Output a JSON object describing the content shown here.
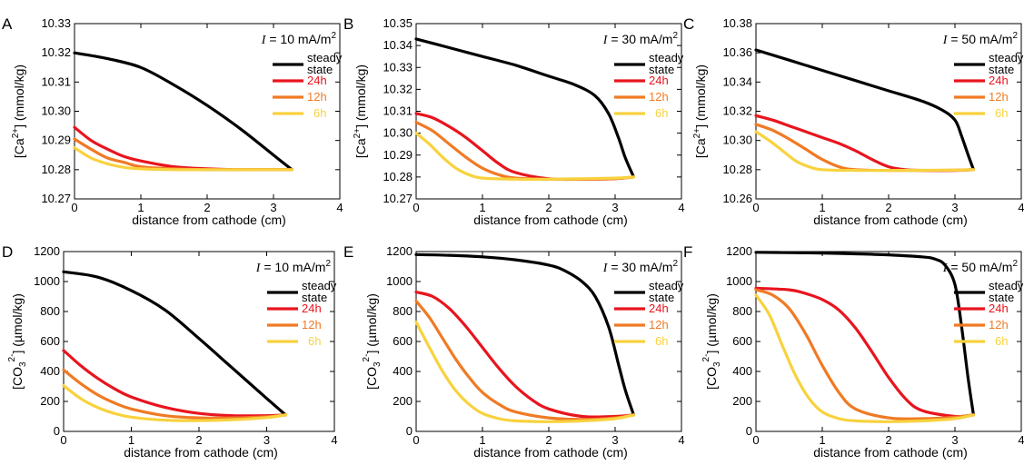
{
  "chart_data": [
    {
      "type": "line",
      "panel_label": "A",
      "current": {
        "symbol": "I",
        "text": " = 10 mA/m",
        "sup": "2"
      },
      "xlabel": "distance from cathode (cm)",
      "ylabel": {
        "pre": "[Ca",
        "sup": "2+",
        "post": "] (mmol/kg)"
      },
      "xlim": [
        0,
        4
      ],
      "ylim": [
        10.27,
        10.33
      ],
      "xticks": [
        0,
        1,
        2,
        3,
        4
      ],
      "yticks": [
        10.27,
        10.28,
        10.29,
        10.3,
        10.31,
        10.32,
        10.33
      ],
      "ytick_labels": [
        "10.27",
        "10.28",
        "10.29",
        "10.30",
        "10.31",
        "10.32",
        "10.33"
      ],
      "legend_position": "top-right",
      "series": [
        {
          "name": "steady state",
          "color": "#000000",
          "x": [
            0,
            0.5,
            1,
            1.5,
            2,
            2.5,
            3,
            3.28
          ],
          "y": [
            10.32,
            10.318,
            10.315,
            10.309,
            10.302,
            10.294,
            10.285,
            10.28
          ]
        },
        {
          "name": "24h",
          "color": "#e8141e",
          "x": [
            0,
            0.25,
            0.5,
            0.75,
            1,
            1.5,
            2,
            2.5,
            3,
            3.28
          ],
          "y": [
            10.2945,
            10.29,
            10.287,
            10.2845,
            10.283,
            10.281,
            10.2803,
            10.28,
            10.28,
            10.28
          ]
        },
        {
          "name": "12h",
          "color": "#f07a24",
          "x": [
            0,
            0.25,
            0.5,
            0.75,
            1,
            1.5,
            2,
            3,
            3.28
          ],
          "y": [
            10.2905,
            10.287,
            10.284,
            10.2825,
            10.281,
            10.2803,
            10.28,
            10.28,
            10.28
          ]
        },
        {
          "name": "6h",
          "color": "#f8d23e",
          "x": [
            0,
            0.25,
            0.5,
            0.75,
            1,
            1.5,
            2,
            3,
            3.28
          ],
          "y": [
            10.2875,
            10.284,
            10.282,
            10.2808,
            10.2803,
            10.28,
            10.28,
            10.28,
            10.28
          ]
        }
      ]
    },
    {
      "type": "line",
      "panel_label": "B",
      "current": {
        "symbol": "I",
        "text": " = 30 mA/m",
        "sup": "2"
      },
      "xlabel": "distance from cathode (cm)",
      "ylabel": {
        "pre": "[Ca",
        "sup": "2+",
        "post": "] (mmol/kg)"
      },
      "xlim": [
        0,
        4
      ],
      "ylim": [
        10.27,
        10.35
      ],
      "xticks": [
        0,
        1,
        2,
        3,
        4
      ],
      "yticks": [
        10.27,
        10.28,
        10.29,
        10.3,
        10.31,
        10.32,
        10.33,
        10.34,
        10.35
      ],
      "ytick_labels": [
        "10.27",
        "10.28",
        "10.29",
        "10.30",
        "10.31",
        "10.32",
        "10.33",
        "10.34",
        "10.35"
      ],
      "legend_position": "top-right",
      "series": [
        {
          "name": "steady state",
          "color": "#000000",
          "x": [
            0,
            0.5,
            1,
            1.5,
            2,
            2.4,
            2.7,
            2.9,
            3.05,
            3.15,
            3.28
          ],
          "y": [
            10.343,
            10.339,
            10.335,
            10.331,
            10.326,
            10.322,
            10.317,
            10.309,
            10.298,
            10.289,
            10.28
          ]
        },
        {
          "name": "24h",
          "color": "#e8141e",
          "x": [
            0,
            0.25,
            0.5,
            0.75,
            1,
            1.25,
            1.5,
            2,
            2.5,
            3,
            3.28
          ],
          "y": [
            10.309,
            10.307,
            10.303,
            10.298,
            10.292,
            10.286,
            10.282,
            10.2792,
            10.279,
            10.2792,
            10.28
          ]
        },
        {
          "name": "12h",
          "color": "#f07a24",
          "x": [
            0,
            0.25,
            0.5,
            0.75,
            1,
            1.25,
            1.5,
            2,
            2.5,
            3,
            3.28
          ],
          "y": [
            10.305,
            10.301,
            10.295,
            10.289,
            10.284,
            10.281,
            10.2795,
            10.279,
            10.279,
            10.2793,
            10.28
          ]
        },
        {
          "name": "6h",
          "color": "#f8d23e",
          "x": [
            0,
            0.2,
            0.4,
            0.6,
            0.8,
            1,
            1.5,
            2,
            3,
            3.28
          ],
          "y": [
            10.3,
            10.295,
            10.289,
            10.284,
            10.281,
            10.2795,
            10.279,
            10.279,
            10.2795,
            10.28
          ]
        }
      ]
    },
    {
      "type": "line",
      "panel_label": "C",
      "current": {
        "symbol": "I",
        "text": " = 50 mA/m",
        "sup": "2"
      },
      "xlabel": "distance from cathode (cm)",
      "ylabel": {
        "pre": "[Ca",
        "sup": "2+",
        "post": "] (mmol/kg)"
      },
      "xlim": [
        0,
        4
      ],
      "ylim": [
        10.26,
        10.38
      ],
      "xticks": [
        0,
        1,
        2,
        3,
        4
      ],
      "yticks": [
        10.26,
        10.28,
        10.3,
        10.32,
        10.34,
        10.36,
        10.38
      ],
      "ytick_labels": [
        "10.26",
        "10.28",
        "10.30",
        "10.32",
        "10.34",
        "10.36",
        "10.38"
      ],
      "legend_position": "top-right",
      "series": [
        {
          "name": "steady state",
          "color": "#000000",
          "x": [
            0,
            0.5,
            1,
            1.5,
            2,
            2.5,
            2.8,
            3.0,
            3.1,
            3.2,
            3.28
          ],
          "y": [
            10.362,
            10.355,
            10.348,
            10.341,
            10.334,
            10.327,
            10.321,
            10.314,
            10.303,
            10.29,
            10.28
          ]
        },
        {
          "name": "24h",
          "color": "#e8141e",
          "x": [
            0,
            0.25,
            0.5,
            0.75,
            1,
            1.25,
            1.5,
            1.75,
            2,
            2.25,
            2.5,
            3,
            3.28
          ],
          "y": [
            10.317,
            10.314,
            10.31,
            10.306,
            10.302,
            10.298,
            10.293,
            10.287,
            10.282,
            10.28,
            10.2795,
            10.2795,
            10.28
          ]
        },
        {
          "name": "12h",
          "color": "#f07a24",
          "x": [
            0,
            0.25,
            0.5,
            0.75,
            1,
            1.25,
            1.5,
            2,
            2.5,
            3,
            3.28
          ],
          "y": [
            10.311,
            10.307,
            10.301,
            10.294,
            10.287,
            10.282,
            10.28,
            10.2795,
            10.2795,
            10.2797,
            10.28
          ]
        },
        {
          "name": "6h",
          "color": "#f8d23e",
          "x": [
            0,
            0.2,
            0.4,
            0.6,
            0.8,
            1,
            1.5,
            2,
            3,
            3.28
          ],
          "y": [
            10.306,
            10.3,
            10.293,
            10.286,
            10.282,
            10.28,
            10.2795,
            10.2795,
            10.2797,
            10.28
          ]
        }
      ]
    },
    {
      "type": "line",
      "panel_label": "D",
      "current": {
        "symbol": "I",
        "text": " = 10 mA/m",
        "sup": "2"
      },
      "xlabel": "distance from cathode (cm)",
      "ylabel": {
        "pre": "[CO",
        "sub": "3",
        "sup": "2-",
        "post": "] (µmol/kg)"
      },
      "xlim": [
        0,
        4
      ],
      "ylim": [
        0,
        1200
      ],
      "xticks": [
        0,
        1,
        2,
        3,
        4
      ],
      "yticks": [
        0,
        200,
        400,
        600,
        800,
        1000,
        1200
      ],
      "ytick_labels": [
        "0",
        "200",
        "400",
        "600",
        "800",
        "1000",
        "1200"
      ],
      "legend_position": "top-right",
      "series": [
        {
          "name": "steady state",
          "color": "#000000",
          "x": [
            0,
            0.5,
            1,
            1.5,
            2,
            2.5,
            3,
            3.28
          ],
          "y": [
            1065,
            1030,
            940,
            810,
            620,
            420,
            220,
            110
          ]
        },
        {
          "name": "24h",
          "color": "#e8141e",
          "x": [
            0,
            0.25,
            0.5,
            0.75,
            1,
            1.5,
            2,
            2.5,
            3,
            3.28
          ],
          "y": [
            540,
            440,
            355,
            285,
            230,
            160,
            120,
            105,
            105,
            110
          ]
        },
        {
          "name": "12h",
          "color": "#f07a24",
          "x": [
            0,
            0.25,
            0.5,
            0.75,
            1,
            1.5,
            2,
            2.5,
            3,
            3.28
          ],
          "y": [
            410,
            320,
            245,
            190,
            150,
            105,
            90,
            90,
            98,
            110
          ]
        },
        {
          "name": "6h",
          "color": "#f8d23e",
          "x": [
            0,
            0.25,
            0.5,
            0.75,
            1,
            1.5,
            2,
            2.5,
            3,
            3.28
          ],
          "y": [
            305,
            220,
            160,
            120,
            95,
            75,
            72,
            78,
            92,
            110
          ]
        }
      ]
    },
    {
      "type": "line",
      "panel_label": "E",
      "current": {
        "symbol": "I",
        "text": " = 30 mA/m",
        "sup": "2"
      },
      "xlabel": "distance from cathode (cm)",
      "ylabel": {
        "pre": "[CO",
        "sub": "3",
        "sup": "2-",
        "post": "] (µmol/kg)"
      },
      "xlim": [
        0,
        4
      ],
      "ylim": [
        0,
        1200
      ],
      "xticks": [
        0,
        1,
        2,
        3,
        4
      ],
      "yticks": [
        0,
        200,
        400,
        600,
        800,
        1000,
        1200
      ],
      "ytick_labels": [
        "0",
        "200",
        "400",
        "600",
        "800",
        "1000",
        "1200"
      ],
      "legend_position": "top-right",
      "series": [
        {
          "name": "steady state",
          "color": "#000000",
          "x": [
            0,
            0.5,
            1,
            1.5,
            2,
            2.25,
            2.5,
            2.7,
            2.9,
            3.05,
            3.15,
            3.28
          ],
          "y": [
            1180,
            1175,
            1165,
            1145,
            1110,
            1070,
            1000,
            900,
            700,
            450,
            280,
            110
          ]
        },
        {
          "name": "24h",
          "color": "#e8141e",
          "x": [
            0,
            0.25,
            0.5,
            0.75,
            1,
            1.25,
            1.5,
            1.75,
            2,
            2.5,
            3,
            3.28
          ],
          "y": [
            930,
            900,
            820,
            700,
            560,
            420,
            300,
            210,
            150,
            100,
            100,
            110
          ]
        },
        {
          "name": "12h",
          "color": "#f07a24",
          "x": [
            0,
            0.2,
            0.4,
            0.6,
            0.8,
            1,
            1.25,
            1.5,
            2,
            2.5,
            3,
            3.28
          ],
          "y": [
            870,
            760,
            620,
            480,
            360,
            260,
            180,
            130,
            90,
            80,
            90,
            110
          ]
        },
        {
          "name": "6h",
          "color": "#f8d23e",
          "x": [
            0,
            0.2,
            0.4,
            0.6,
            0.8,
            1,
            1.25,
            1.5,
            2,
            2.5,
            3,
            3.28
          ],
          "y": [
            730,
            560,
            400,
            270,
            180,
            120,
            85,
            70,
            65,
            70,
            85,
            110
          ]
        }
      ]
    },
    {
      "type": "line",
      "panel_label": "F",
      "current": {
        "symbol": "I",
        "text": " = 50 mA/m",
        "sup": "2"
      },
      "xlabel": "distance from cathode (cm)",
      "ylabel": {
        "pre": "[CO",
        "sub": "3",
        "sup": "2-",
        "post": "] (µmol/kg)"
      },
      "xlim": [
        0,
        4
      ],
      "ylim": [
        0,
        1200
      ],
      "xticks": [
        0,
        1,
        2,
        3,
        4
      ],
      "yticks": [
        0,
        200,
        400,
        600,
        800,
        1000,
        1200
      ],
      "ytick_labels": [
        "0",
        "200",
        "400",
        "600",
        "800",
        "1000",
        "1200"
      ],
      "legend_position": "top-right",
      "series": [
        {
          "name": "steady state",
          "color": "#000000",
          "x": [
            0,
            0.5,
            1,
            1.5,
            2,
            2.5,
            2.7,
            2.85,
            3.0,
            3.1,
            3.2,
            3.28
          ],
          "y": [
            1195,
            1193,
            1190,
            1185,
            1178,
            1165,
            1150,
            1110,
            980,
            700,
            350,
            110
          ]
        },
        {
          "name": "24h",
          "color": "#e8141e",
          "x": [
            0,
            0.5,
            0.75,
            1,
            1.25,
            1.5,
            1.75,
            2,
            2.25,
            2.5,
            3,
            3.28
          ],
          "y": [
            955,
            945,
            920,
            880,
            810,
            690,
            530,
            360,
            220,
            140,
            100,
            110
          ]
        },
        {
          "name": "12h",
          "color": "#f07a24",
          "x": [
            0,
            0.25,
            0.5,
            0.75,
            1,
            1.25,
            1.5,
            2,
            2.5,
            3,
            3.28
          ],
          "y": [
            945,
            910,
            820,
            650,
            440,
            260,
            150,
            90,
            85,
            95,
            110
          ]
        },
        {
          "name": "6h",
          "color": "#f8d23e",
          "x": [
            0,
            0.2,
            0.4,
            0.6,
            0.8,
            1,
            1.25,
            1.5,
            2,
            2.5,
            3,
            3.28
          ],
          "y": [
            910,
            780,
            570,
            370,
            220,
            130,
            85,
            70,
            65,
            70,
            85,
            110
          ]
        }
      ]
    }
  ],
  "legend_lines": [
    [
      "steady",
      "state"
    ],
    [
      "24h"
    ],
    [
      "12h"
    ],
    [
      "6h"
    ]
  ]
}
